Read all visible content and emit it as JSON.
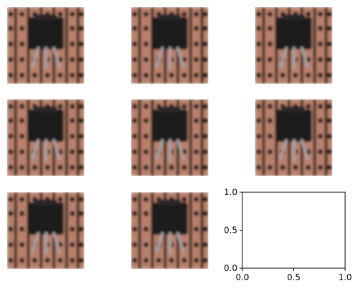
{
  "chart_data": {
    "type": "image-grid",
    "grid": {
      "rows": 3,
      "cols": 3
    },
    "panels": [
      {
        "kind": "image",
        "image": "stripboard-component-icon"
      },
      {
        "kind": "image",
        "image": "stripboard-component-icon"
      },
      {
        "kind": "image",
        "image": "stripboard-component-icon"
      },
      {
        "kind": "image",
        "image": "stripboard-component-icon"
      },
      {
        "kind": "image",
        "image": "stripboard-component-icon"
      },
      {
        "kind": "image",
        "image": "stripboard-component-icon"
      },
      {
        "kind": "image",
        "image": "stripboard-component-icon"
      },
      {
        "kind": "image",
        "image": "stripboard-component-icon"
      },
      {
        "kind": "empty-axes",
        "xlim": [
          0.0,
          1.0
        ],
        "ylim": [
          0.0,
          1.0
        ],
        "xticks": [
          "0.0",
          "0.5",
          "1.0"
        ],
        "yticks": [
          "0.0",
          "0.5",
          "1.0"
        ]
      }
    ],
    "colors": {
      "board": "#b8806c",
      "strip_dark": "#3a2a24",
      "hole": "#1c1412",
      "body": "#1e1c1e",
      "leg": "#a8a0a4"
    }
  }
}
